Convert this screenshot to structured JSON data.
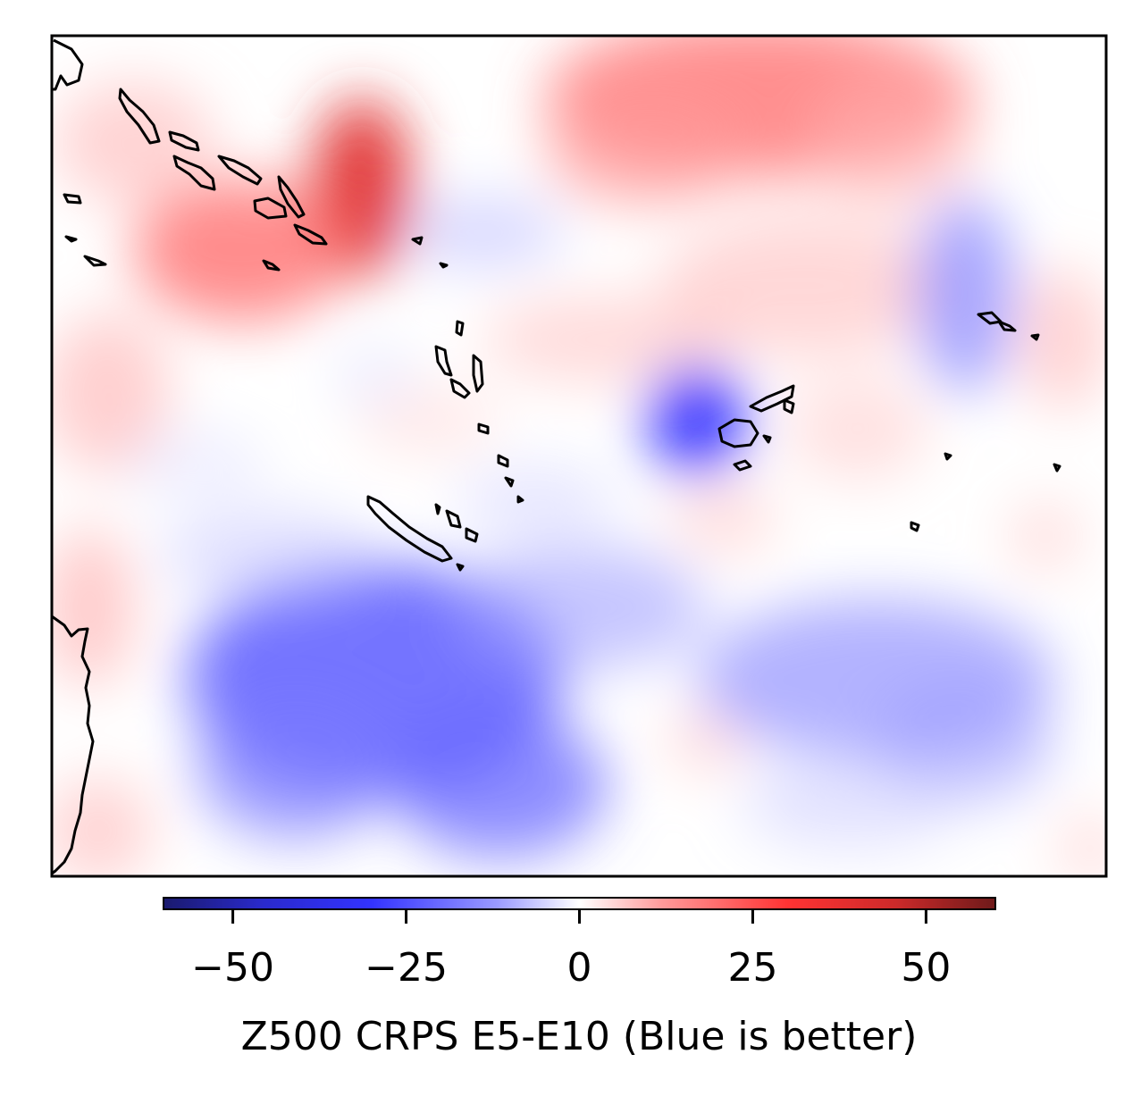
{
  "colorbar": {
    "label": "Z500 CRPS E5-E10 (Blue is better)",
    "range": [
      -60,
      60
    ],
    "ticks": [
      {
        "value": -50,
        "label": "−50"
      },
      {
        "value": -25,
        "label": "−25"
      },
      {
        "value": 0,
        "label": "0"
      },
      {
        "value": 25,
        "label": "25"
      },
      {
        "value": 50,
        "label": "50"
      }
    ],
    "colormap": {
      "low": "#1a1a6e",
      "mid_low": "#3333ff",
      "center": "#ffffff",
      "mid_high": "#ff3333",
      "high": "#6e1a1a"
    }
  },
  "map": {
    "coastline_color": "#000000",
    "frame_color": "#000000"
  }
}
